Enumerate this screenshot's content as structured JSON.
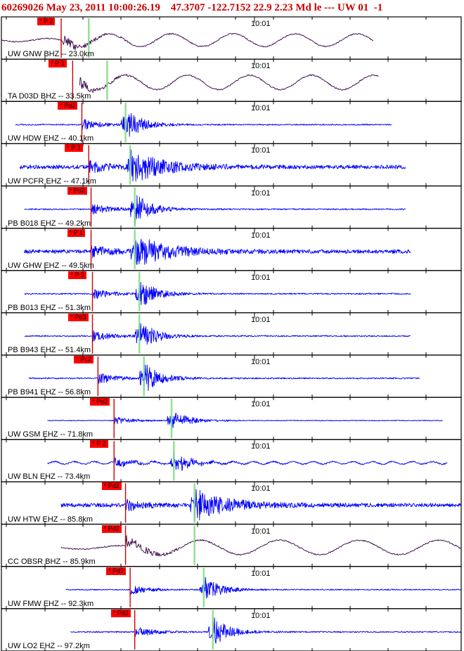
{
  "header": {
    "event_id": "60269026",
    "date": "May 23, 2011",
    "time": "10:00:26.19",
    "lat": "47.3707",
    "lon": "-122.7152",
    "depth": "22.9",
    "magnitude": "2.23",
    "mag_type": "Md",
    "etype": "le",
    "flag": "---",
    "network": "UW",
    "version": "01",
    "extra": "-1"
  },
  "colors": {
    "frame": "#000000",
    "header_text": "#cc0000",
    "trace_blue": "#0000ff",
    "trace_purple": "#330044",
    "pick_line": "#cc0000",
    "pick_tag_bg": "#ff0000",
    "s_marker": "#88dd88"
  },
  "tick_time_label": "10:01",
  "panels": [
    {
      "id": "gnw",
      "label": "UW GNW BHZ -- 23.0km",
      "pick": "* P 2",
      "ptime": 0.13,
      "stime": 0.19,
      "color": "purple",
      "start": 0.0,
      "end": 0.81,
      "style": "surface",
      "amp": 0.8
    },
    {
      "id": "d03d",
      "label": "TA D03D BHZ -- 33.5km",
      "pick": "* P 1",
      "ptime": 0.155,
      "stime": 0.23,
      "color": "purple",
      "start": 0.17,
      "end": 0.82,
      "style": "surface",
      "amp": 0.9
    },
    {
      "id": "hdw",
      "label": "UW HDW EHZ -- 40.1km",
      "pick": "* Pd2",
      "ptime": 0.175,
      "stime": 0.27,
      "color": "blue",
      "start": 0.03,
      "end": 0.85,
      "style": "impulse",
      "amp": 0.9
    },
    {
      "id": "pcfr",
      "label": "UW PCFR EHZ -- 47.1km",
      "pick": "* P 1",
      "ptime": 0.19,
      "stime": 0.28,
      "color": "blue",
      "start": 0.04,
      "end": 0.88,
      "style": "noisy",
      "amp": 0.9
    },
    {
      "id": "b018",
      "label": "PB B018 EHZ -- 49.2km",
      "pick": "* Pd2",
      "ptime": 0.195,
      "stime": 0.29,
      "color": "blue",
      "start": 0.05,
      "end": 0.88,
      "style": "impulse",
      "amp": 0.9
    },
    {
      "id": "ghw",
      "label": "UW GHW EHZ -- 49.5km",
      "pick": "* P 1",
      "ptime": 0.195,
      "stime": 0.29,
      "color": "blue",
      "start": 0.05,
      "end": 0.89,
      "style": "noisy",
      "amp": 0.9
    },
    {
      "id": "b013",
      "label": "PB B013 EHZ -- 51.3km",
      "pick": "* P 2",
      "ptime": 0.198,
      "stime": 0.3,
      "color": "blue",
      "start": 0.05,
      "end": 0.89,
      "style": "impulse",
      "amp": 0.9
    },
    {
      "id": "b943",
      "label": "PB B943 EHZ -- 51.4km",
      "pick": "* Pd3",
      "ptime": 0.198,
      "stime": 0.3,
      "color": "blue",
      "start": 0.05,
      "end": 0.89,
      "style": "impulse",
      "amp": 0.9
    },
    {
      "id": "b941",
      "label": "PB B941 EHZ -- 56.8km",
      "pick": "* Pc2",
      "ptime": 0.21,
      "stime": 0.31,
      "color": "blue",
      "start": 0.06,
      "end": 0.91,
      "style": "impulse",
      "amp": 0.9
    },
    {
      "id": "gsm",
      "label": "UW GSM EHZ -- 71.8km",
      "pick": "* Pd2",
      "ptime": 0.245,
      "stime": 0.37,
      "color": "blue",
      "start": 0.1,
      "end": 0.96,
      "style": "impulse",
      "amp": 0.6
    },
    {
      "id": "bln",
      "label": "UW BLN EHZ -- 73.4km",
      "pick": "* P 2",
      "ptime": 0.245,
      "stime": 0.375,
      "color": "blue",
      "start": 0.1,
      "end": 0.97,
      "style": "wavy",
      "amp": 0.6
    },
    {
      "id": "htw",
      "label": "UW HTW EHZ -- 85.8km",
      "pick": "* Pd2",
      "ptime": 0.27,
      "stime": 0.42,
      "color": "blue",
      "start": 0.13,
      "end": 1.0,
      "style": "noisy",
      "amp": 0.9
    },
    {
      "id": "obsr",
      "label": "CC OBSR BHZ -- 85.9km",
      "pick": "* Pd2",
      "ptime": 0.27,
      "stime": 0.42,
      "color": "purple",
      "start": 0.13,
      "end": 1.0,
      "style": "surface",
      "amp": 0.9
    },
    {
      "id": "fmw",
      "label": "UW FMW EHZ -- 92.3km",
      "pick": "* Pd2",
      "ptime": 0.28,
      "stime": 0.44,
      "color": "blue",
      "start": 0.14,
      "end": 1.0,
      "style": "impulse",
      "amp": 0.75
    },
    {
      "id": "lo2",
      "label": "UW LO2 EHZ -- 97.2km",
      "pick": "* Pd2",
      "ptime": 0.29,
      "stime": 0.46,
      "color": "blue",
      "start": 0.15,
      "end": 1.0,
      "style": "impulse",
      "amp": 0.85
    }
  ]
}
